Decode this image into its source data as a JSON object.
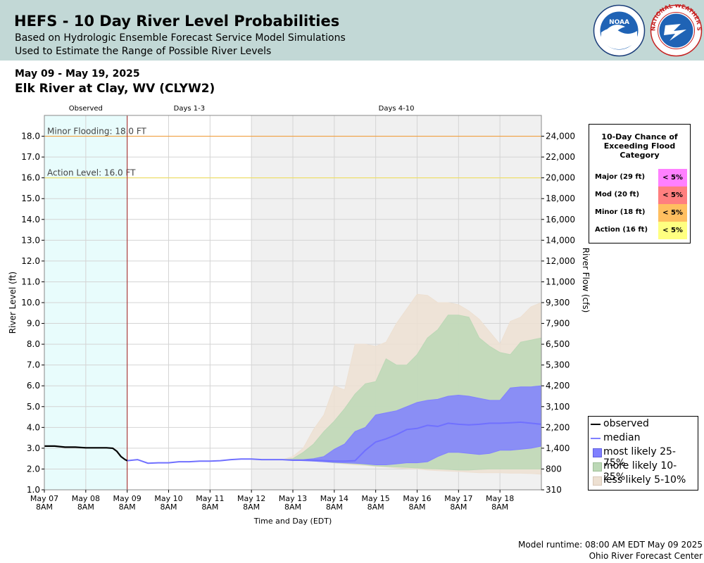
{
  "header": {
    "title": "HEFS - 10 Day River Level Probabilities",
    "subtitle1": "Based on Hydrologic Ensemble Forecast Service Model Simulations",
    "subtitle2": "Used to Estimate the Range of Possible River Levels",
    "noaa_logo_text": "NOAA",
    "nws_logo_text": "NATIONAL WEATHER SERVICE"
  },
  "date_range": "May 09 - May 19, 2025",
  "station": "Elk River at Clay, WV (CLYW2)",
  "footer": {
    "runtime": "Model runtime: 08:00 AM EDT May 09 2025",
    "center": "Ohio River Forecast Center"
  },
  "chance_table": {
    "title": "10-Day Chance of Exceeding Flood Category",
    "rows": [
      {
        "label": "Major (29 ft)",
        "value": "< 5%",
        "color": "#ff80ff"
      },
      {
        "label": "Mod (20 ft)",
        "value": "< 5%",
        "color": "#ff7f7f"
      },
      {
        "label": "Minor (18 ft)",
        "value": "< 5%",
        "color": "#ffbf60"
      },
      {
        "label": "Action (16 ft)",
        "value": "< 5%",
        "color": "#ffff80"
      }
    ]
  },
  "legend": [
    {
      "label": "observed",
      "kind": "line",
      "color": "#000000"
    },
    {
      "label": "median",
      "kind": "line",
      "color": "#8080ff"
    },
    {
      "label": "most likely 25-75%",
      "kind": "box",
      "color": "#8080ff"
    },
    {
      "label": "more likely 10-25%",
      "kind": "box",
      "color": "#bcd8b6"
    },
    {
      "label": "less likely 5-10%",
      "kind": "box",
      "color": "#ede0d2"
    }
  ],
  "chart_data": {
    "type": "area",
    "ylabel": "River Level (ft)",
    "y2label": "River Flow (cfs)",
    "xlabel": "Time and Day (EDT)",
    "ylim": [
      1.0,
      19.0
    ],
    "xlim": [
      0,
      12
    ],
    "grid": true,
    "y_ticks": [
      "1.0",
      "2.0",
      "3.0",
      "4.0",
      "5.0",
      "6.0",
      "7.0",
      "8.0",
      "9.0",
      "10.0",
      "11.0",
      "12.0",
      "13.0",
      "14.0",
      "15.0",
      "16.0",
      "17.0",
      "18.0"
    ],
    "y2_ticks": [
      {
        "level": 1.0,
        "label": "310"
      },
      {
        "level": 2.0,
        "label": "800"
      },
      {
        "level": 3.0,
        "label": "1,400"
      },
      {
        "level": 4.0,
        "label": "2,200"
      },
      {
        "level": 5.0,
        "label": "3,100"
      },
      {
        "level": 6.0,
        "label": "4,200"
      },
      {
        "level": 7.0,
        "label": "5,300"
      },
      {
        "level": 8.0,
        "label": "6,500"
      },
      {
        "level": 9.0,
        "label": "7,900"
      },
      {
        "level": 10.0,
        "label": "9,300"
      },
      {
        "level": 11.0,
        "label": "11,000"
      },
      {
        "level": 12.0,
        "label": "12,000"
      },
      {
        "level": 13.0,
        "label": "14,000"
      },
      {
        "level": 14.0,
        "label": "16,000"
      },
      {
        "level": 15.0,
        "label": "18,000"
      },
      {
        "level": 16.0,
        "label": "20,000"
      },
      {
        "level": 17.0,
        "label": "22,000"
      },
      {
        "level": 18.0,
        "label": "24,000"
      }
    ],
    "x_ticks": [
      {
        "x": 0,
        "label": "May 07",
        "sub": "8AM"
      },
      {
        "x": 1,
        "label": "May 08",
        "sub": "8AM"
      },
      {
        "x": 2,
        "label": "May 09",
        "sub": "8AM"
      },
      {
        "x": 3,
        "label": "May 10",
        "sub": "8AM"
      },
      {
        "x": 4,
        "label": "May 11",
        "sub": "8AM"
      },
      {
        "x": 5,
        "label": "May 12",
        "sub": "8AM"
      },
      {
        "x": 6,
        "label": "May 13",
        "sub": "8AM"
      },
      {
        "x": 7,
        "label": "May 14",
        "sub": "8AM"
      },
      {
        "x": 8,
        "label": "May 15",
        "sub": "8AM"
      },
      {
        "x": 9,
        "label": "May 16",
        "sub": "8AM"
      },
      {
        "x": 10,
        "label": "May 17",
        "sub": "8AM"
      },
      {
        "x": 11,
        "label": "May 18",
        "sub": "8AM"
      }
    ],
    "periods": [
      {
        "label": "Observed",
        "x0": 0,
        "x1": 2,
        "color": "#e8fcfc"
      },
      {
        "label": "Days 1-3",
        "x0": 2,
        "x1": 5,
        "color": "#ffffff"
      },
      {
        "label": "Days 4-10",
        "x0": 5,
        "x1": 12,
        "color": "#f0f0f0"
      }
    ],
    "thresholds": [
      {
        "label": "Minor Flooding: 18.0 FT",
        "value": 18.0,
        "color": "#f0a040"
      },
      {
        "label": "Action Level: 16.0 FT",
        "value": 16.0,
        "color": "#f0e060"
      }
    ],
    "observed": {
      "x": [
        0,
        0.25,
        0.5,
        0.75,
        1.0,
        1.25,
        1.5,
        1.65,
        1.75,
        1.85,
        1.95,
        2.0
      ],
      "y": [
        3.1,
        3.1,
        3.05,
        3.05,
        3.02,
        3.02,
        3.02,
        3.0,
        2.85,
        2.6,
        2.45,
        2.4
      ]
    },
    "median": {
      "x": [
        2.0,
        2.25,
        2.5,
        2.75,
        3.0,
        3.25,
        3.5,
        3.75,
        4.0,
        4.25,
        4.5,
        4.75,
        5.0,
        5.25,
        5.5,
        5.75,
        6.0,
        6.25,
        6.5,
        6.75,
        7.0,
        7.25,
        7.5,
        7.75,
        8.0,
        8.25,
        8.5,
        8.75,
        9.0,
        9.25,
        9.5,
        9.75,
        10.0,
        10.25,
        10.5,
        10.75,
        11.0,
        11.25,
        11.5,
        11.75,
        12.0
      ],
      "y": [
        2.4,
        2.45,
        2.28,
        2.3,
        2.3,
        2.35,
        2.35,
        2.38,
        2.38,
        2.4,
        2.45,
        2.48,
        2.48,
        2.45,
        2.45,
        2.45,
        2.42,
        2.42,
        2.42,
        2.4,
        2.38,
        2.38,
        2.4,
        2.9,
        3.3,
        3.45,
        3.65,
        3.9,
        3.95,
        4.1,
        4.05,
        4.2,
        4.15,
        4.12,
        4.15,
        4.2,
        4.2,
        4.22,
        4.25,
        4.2,
        4.15
      ]
    },
    "bands": [
      {
        "name": "less likely 5-10%",
        "color": "#ede0d2",
        "x": [
          5.75,
          6.0,
          6.25,
          6.5,
          6.75,
          7.0,
          7.25,
          7.5,
          7.75,
          8.0,
          8.25,
          8.5,
          8.75,
          9.0,
          9.25,
          9.5,
          9.75,
          10.0,
          10.25,
          10.5,
          10.75,
          11.0,
          11.25,
          11.5,
          11.75,
          12.0
        ],
        "upper": [
          2.45,
          2.6,
          3.0,
          3.9,
          4.6,
          6.0,
          5.8,
          8.0,
          8.0,
          7.9,
          8.1,
          9.0,
          9.7,
          10.4,
          10.35,
          10.0,
          10.0,
          9.9,
          9.6,
          9.2,
          8.6,
          8.0,
          9.1,
          9.3,
          9.8,
          10.0
        ],
        "lower": [
          2.45,
          2.45,
          2.42,
          2.38,
          2.35,
          2.3,
          2.25,
          2.2,
          2.18,
          2.12,
          2.1,
          2.05,
          2.02,
          2.0,
          1.95,
          1.92,
          1.9,
          1.88,
          1.85,
          1.82,
          1.82,
          1.82,
          1.8,
          1.8,
          1.78,
          1.75
        ]
      },
      {
        "name": "more likely 10-25%",
        "color": "#bcd8b6",
        "x": [
          5.75,
          6.0,
          6.25,
          6.5,
          6.75,
          7.0,
          7.25,
          7.5,
          7.75,
          8.0,
          8.25,
          8.5,
          8.75,
          9.0,
          9.25,
          9.5,
          9.75,
          10.0,
          10.25,
          10.5,
          10.75,
          11.0,
          11.25,
          11.5,
          11.75,
          12.0
        ],
        "upper": [
          2.45,
          2.5,
          2.8,
          3.2,
          3.8,
          4.3,
          4.9,
          5.6,
          6.1,
          6.2,
          7.3,
          7.0,
          7.0,
          7.5,
          8.3,
          8.7,
          9.4,
          9.4,
          9.3,
          8.3,
          7.9,
          7.6,
          7.5,
          8.1,
          8.2,
          8.3
        ],
        "lower": [
          2.45,
          2.45,
          2.42,
          2.38,
          2.35,
          2.3,
          2.28,
          2.25,
          2.2,
          2.15,
          2.12,
          2.1,
          2.08,
          2.05,
          2.02,
          2.0,
          1.98,
          1.95,
          1.95,
          1.98,
          2.0,
          2.0,
          2.0,
          2.0,
          2.0,
          2.0
        ]
      },
      {
        "name": "most likely 25-75%",
        "color": "#8080ff",
        "x": [
          5.75,
          6.0,
          6.25,
          6.5,
          6.75,
          7.0,
          7.25,
          7.5,
          7.75,
          8.0,
          8.25,
          8.5,
          8.75,
          9.0,
          9.25,
          9.5,
          9.75,
          10.0,
          10.25,
          10.5,
          10.75,
          11.0,
          11.25,
          11.5,
          11.75,
          12.0
        ],
        "upper": [
          2.45,
          2.45,
          2.45,
          2.5,
          2.6,
          2.95,
          3.2,
          3.8,
          4.0,
          4.6,
          4.7,
          4.8,
          5.0,
          5.2,
          5.3,
          5.35,
          5.5,
          5.55,
          5.5,
          5.4,
          5.3,
          5.3,
          5.9,
          5.95,
          5.95,
          6.0
        ],
        "lower": [
          2.45,
          2.42,
          2.4,
          2.38,
          2.35,
          2.32,
          2.3,
          2.28,
          2.25,
          2.2,
          2.2,
          2.25,
          2.3,
          2.3,
          2.35,
          2.6,
          2.8,
          2.8,
          2.75,
          2.7,
          2.75,
          2.9,
          2.9,
          2.95,
          3.0,
          3.1
        ]
      }
    ]
  }
}
